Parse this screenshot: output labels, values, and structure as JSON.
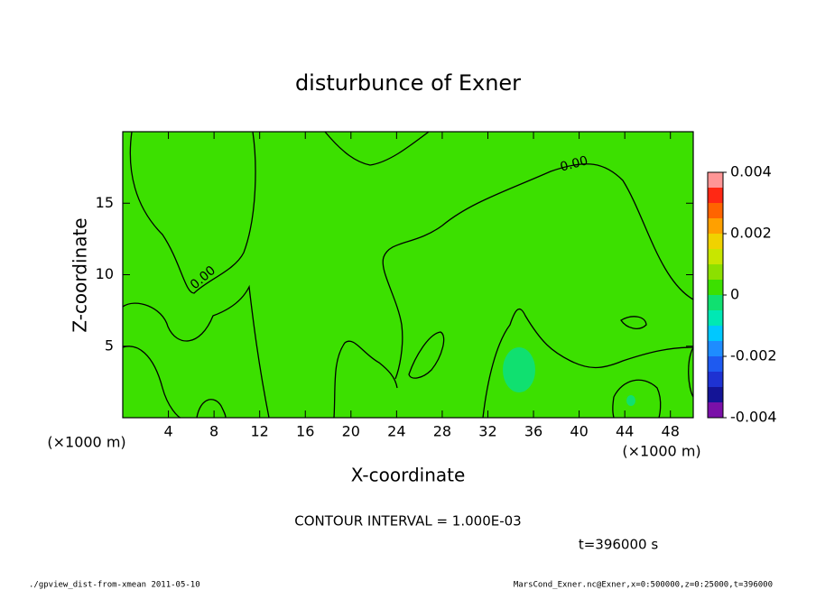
{
  "chart_data": {
    "type": "contour",
    "title": "disturbunce of Exner",
    "x_label": "X-coordinate",
    "y_label": "Z-coordinate",
    "x_unit": "(×1000 m)",
    "xlim": [
      0,
      50
    ],
    "xticks": [
      4,
      8,
      12,
      16,
      20,
      24,
      28,
      32,
      36,
      40,
      44,
      48
    ],
    "ylim": [
      0,
      20
    ],
    "yticks": [
      5,
      10,
      15
    ],
    "zlim": [
      -0.004,
      0.004
    ],
    "zticks": [
      0.004,
      0.002,
      0,
      -0.002,
      -0.004
    ],
    "colors": [
      "#7a10a8",
      "#141496",
      "#1e32d2",
      "#1e5af0",
      "#1e8cff",
      "#00c8ff",
      "#00e8b4",
      "#10e070",
      "#3ce000",
      "#8ce000",
      "#c8e600",
      "#f0d200",
      "#ffa000",
      "#ff6400",
      "#ff2814",
      "#ff9696"
    ],
    "contour_labels": [
      "0.00",
      "0.00"
    ],
    "annotations": [
      "CONTOUR INTERVAL = 1.000E-03",
      "t=396000 s"
    ],
    "footer_left": "./gpview_dist-from-xmean  2011-05-10",
    "footer_right": "MarsCond_Exner.nc@Exner,x=0:500000,z=0:25000,t=396000"
  }
}
